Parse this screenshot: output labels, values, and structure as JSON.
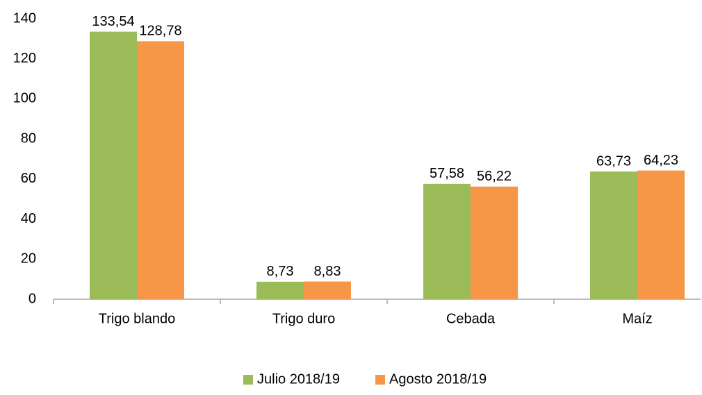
{
  "chart_data": {
    "type": "bar",
    "categories": [
      "Trigo blando",
      "Trigo duro",
      "Cebada",
      "Maíz"
    ],
    "series": [
      {
        "name": "Julio 2018/19",
        "color": "#9bbb59",
        "values": [
          133.54,
          8.73,
          57.58,
          63.73
        ],
        "value_labels": [
          "133,54",
          "8,73",
          "57,58",
          "63,73"
        ]
      },
      {
        "name": "Agosto 2018/19",
        "color": "#f79646",
        "values": [
          128.78,
          8.83,
          56.22,
          64.23
        ],
        "value_labels": [
          "128,78",
          "8,83",
          "56,22",
          "64,23"
        ]
      }
    ],
    "ylim": [
      0,
      140
    ],
    "yticks": [
      0,
      20,
      40,
      60,
      80,
      100,
      120,
      140
    ],
    "grid": false,
    "legend": "bottom"
  }
}
